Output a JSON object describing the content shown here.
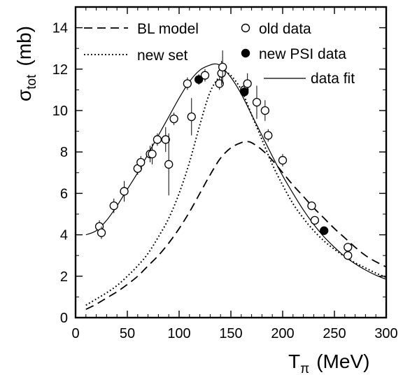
{
  "chart_data": {
    "type": "line",
    "title": "",
    "xlabel": {
      "main": "T",
      "sub": "π",
      "unit": "(MeV)"
    },
    "ylabel": {
      "main": "σ",
      "sub": "tot",
      "unit": "(mb)"
    },
    "xlim": [
      0,
      300
    ],
    "ylim": [
      0,
      15
    ],
    "xticks": [
      0,
      50,
      100,
      150,
      200,
      250,
      300
    ],
    "yticks": [
      0,
      2,
      4,
      6,
      8,
      10,
      12,
      14
    ],
    "grid": false,
    "legend": {
      "placement": "top",
      "items": [
        {
          "label": "BL model",
          "style": "dashed"
        },
        {
          "label": "new set",
          "style": "dotted"
        },
        {
          "label": "old data",
          "style": "open-circle"
        },
        {
          "label": "new PSI data",
          "style": "filled-circle"
        },
        {
          "label": "data fit",
          "style": "solid"
        }
      ]
    },
    "series": [
      {
        "name": "BL model",
        "kind": "line",
        "style": "dashed",
        "x": [
          10,
          20,
          30,
          40,
          50,
          60,
          70,
          80,
          90,
          100,
          110,
          120,
          130,
          140,
          150,
          160,
          165,
          170,
          180,
          190,
          200,
          210,
          220,
          230,
          240,
          250,
          260,
          270,
          280,
          290,
          300
        ],
        "y": [
          0.4,
          0.65,
          0.95,
          1.25,
          1.6,
          2.0,
          2.5,
          3.0,
          3.6,
          4.3,
          5.1,
          6.0,
          6.9,
          7.7,
          8.2,
          8.45,
          8.5,
          8.45,
          8.1,
          7.6,
          7.0,
          6.4,
          5.85,
          5.3,
          4.8,
          4.3,
          3.85,
          3.4,
          3.0,
          2.7,
          2.45
        ]
      },
      {
        "name": "new set",
        "kind": "line",
        "style": "dotted",
        "x": [
          10,
          20,
          30,
          40,
          50,
          60,
          70,
          80,
          90,
          100,
          110,
          120,
          130,
          140,
          145,
          150,
          160,
          170,
          180,
          190,
          200,
          210,
          220,
          230,
          240,
          250,
          260,
          270,
          280,
          290,
          300
        ],
        "y": [
          0.6,
          0.9,
          1.2,
          1.55,
          2.0,
          2.5,
          3.1,
          3.9,
          4.8,
          6.0,
          7.5,
          9.3,
          10.9,
          11.7,
          11.8,
          11.7,
          11.0,
          9.8,
          8.6,
          7.4,
          6.4,
          5.5,
          4.8,
          4.2,
          3.7,
          3.3,
          2.95,
          2.65,
          2.4,
          2.15,
          1.95
        ]
      },
      {
        "name": "data fit",
        "kind": "line",
        "style": "solid",
        "x": [
          10,
          20,
          30,
          40,
          50,
          60,
          70,
          80,
          90,
          100,
          110,
          120,
          130,
          135,
          140,
          150,
          160,
          170,
          180,
          190,
          200,
          210,
          220,
          230,
          240,
          250,
          260,
          270,
          280,
          290,
          300
        ],
        "y": [
          4.0,
          4.2,
          4.7,
          5.4,
          6.2,
          7.0,
          7.9,
          8.8,
          9.7,
          10.6,
          11.4,
          11.95,
          12.2,
          12.25,
          12.15,
          11.6,
          10.8,
          9.8,
          8.8,
          7.8,
          6.85,
          6.0,
          5.2,
          4.5,
          3.9,
          3.4,
          2.95,
          2.6,
          2.3,
          2.05,
          1.85
        ]
      },
      {
        "name": "old data",
        "kind": "points",
        "marker": "open",
        "points": [
          [
            23,
            4.4,
            0.3
          ],
          [
            25,
            4.1,
            0.3
          ],
          [
            37,
            5.4,
            0.35
          ],
          [
            47,
            6.1,
            0.5
          ],
          [
            60,
            7.2,
            0.3
          ],
          [
            63,
            7.5,
            0.3
          ],
          [
            72,
            7.9,
            0.4
          ],
          [
            74,
            7.9,
            0.5
          ],
          [
            79,
            8.6,
            0.3
          ],
          [
            87,
            8.6,
            0.6
          ],
          [
            90,
            7.4,
            1.5
          ],
          [
            95,
            9.6,
            0.3
          ],
          [
            108,
            11.3,
            0.3
          ],
          [
            112,
            9.7,
            0.9
          ],
          [
            125,
            11.7,
            0.3
          ],
          [
            139,
            11.3,
            0.3
          ],
          [
            141,
            11.8,
            0.6
          ],
          [
            142,
            12.1,
            0.8
          ],
          [
            163,
            11.0,
            0.3
          ],
          [
            166,
            11.3,
            0.5
          ],
          [
            175,
            10.4,
            0.8
          ],
          [
            183,
            10.0,
            0.5
          ],
          [
            186,
            8.8,
            0.3
          ],
          [
            200,
            7.6,
            0.3
          ],
          [
            228,
            5.4,
            0.2
          ],
          [
            231,
            4.7,
            0.2
          ],
          [
            263,
            3.4,
            0.2
          ],
          [
            263,
            3.0,
            0.2
          ]
        ]
      },
      {
        "name": "new PSI data",
        "kind": "points",
        "marker": "filled",
        "points": [
          [
            119,
            11.5,
            0.25
          ],
          [
            163,
            10.9,
            0.25
          ],
          [
            240,
            4.2,
            0.15
          ]
        ]
      }
    ]
  }
}
